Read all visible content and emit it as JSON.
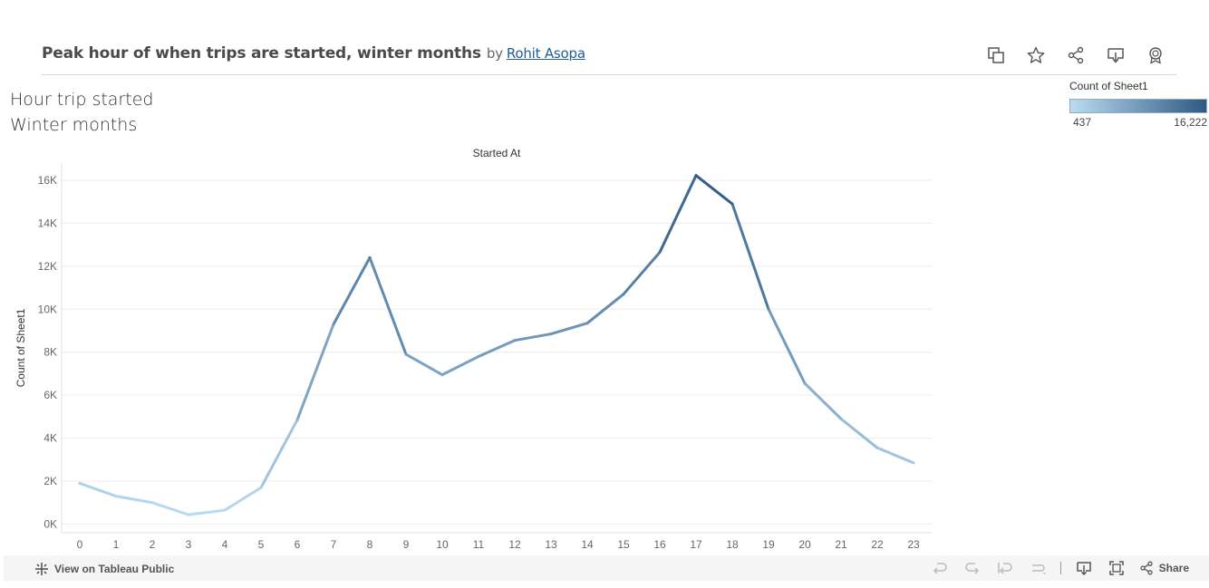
{
  "header": {
    "title": "Peak hour of when trips are started, winter months",
    "by": "by",
    "author": "Rohit Asopa",
    "icons": [
      "duplicate-icon",
      "favorite-star-icon",
      "share-icon",
      "download-icon",
      "badge-icon"
    ]
  },
  "sheet_title": {
    "line1": "Hour trip started",
    "line2": "Winter months"
  },
  "legend": {
    "title": "Count of Sheet1",
    "min_label": "437",
    "max_label": "16,222",
    "color_low": "#b9dcf1",
    "color_high": "#2e5984"
  },
  "chart_data": {
    "type": "line",
    "title": "Started At",
    "xlabel": "",
    "ylabel": "Count of Sheet1",
    "x": [
      0,
      1,
      2,
      3,
      4,
      5,
      6,
      7,
      8,
      9,
      10,
      11,
      12,
      13,
      14,
      15,
      16,
      17,
      18,
      19,
      20,
      21,
      22,
      23
    ],
    "values": [
      1900,
      1300,
      1000,
      437,
      650,
      1700,
      4850,
      9300,
      12400,
      7900,
      6950,
      7800,
      8550,
      8850,
      9350,
      10700,
      12650,
      16222,
      14900,
      10000,
      6550,
      4900,
      3550,
      2850
    ],
    "ylim": [
      0,
      16800
    ],
    "yticks": [
      0,
      2000,
      4000,
      6000,
      8000,
      10000,
      12000,
      14000,
      16000
    ],
    "ytick_labels": [
      "0K",
      "2K",
      "4K",
      "6K",
      "8K",
      "10K",
      "12K",
      "14K",
      "16K"
    ],
    "grid": true,
    "color_scale": {
      "min": 437,
      "max": 16222,
      "low": "#b9dcf1",
      "high": "#2e5984"
    }
  },
  "footer": {
    "view_link": "View on Tableau Public",
    "share_label": "Share"
  }
}
